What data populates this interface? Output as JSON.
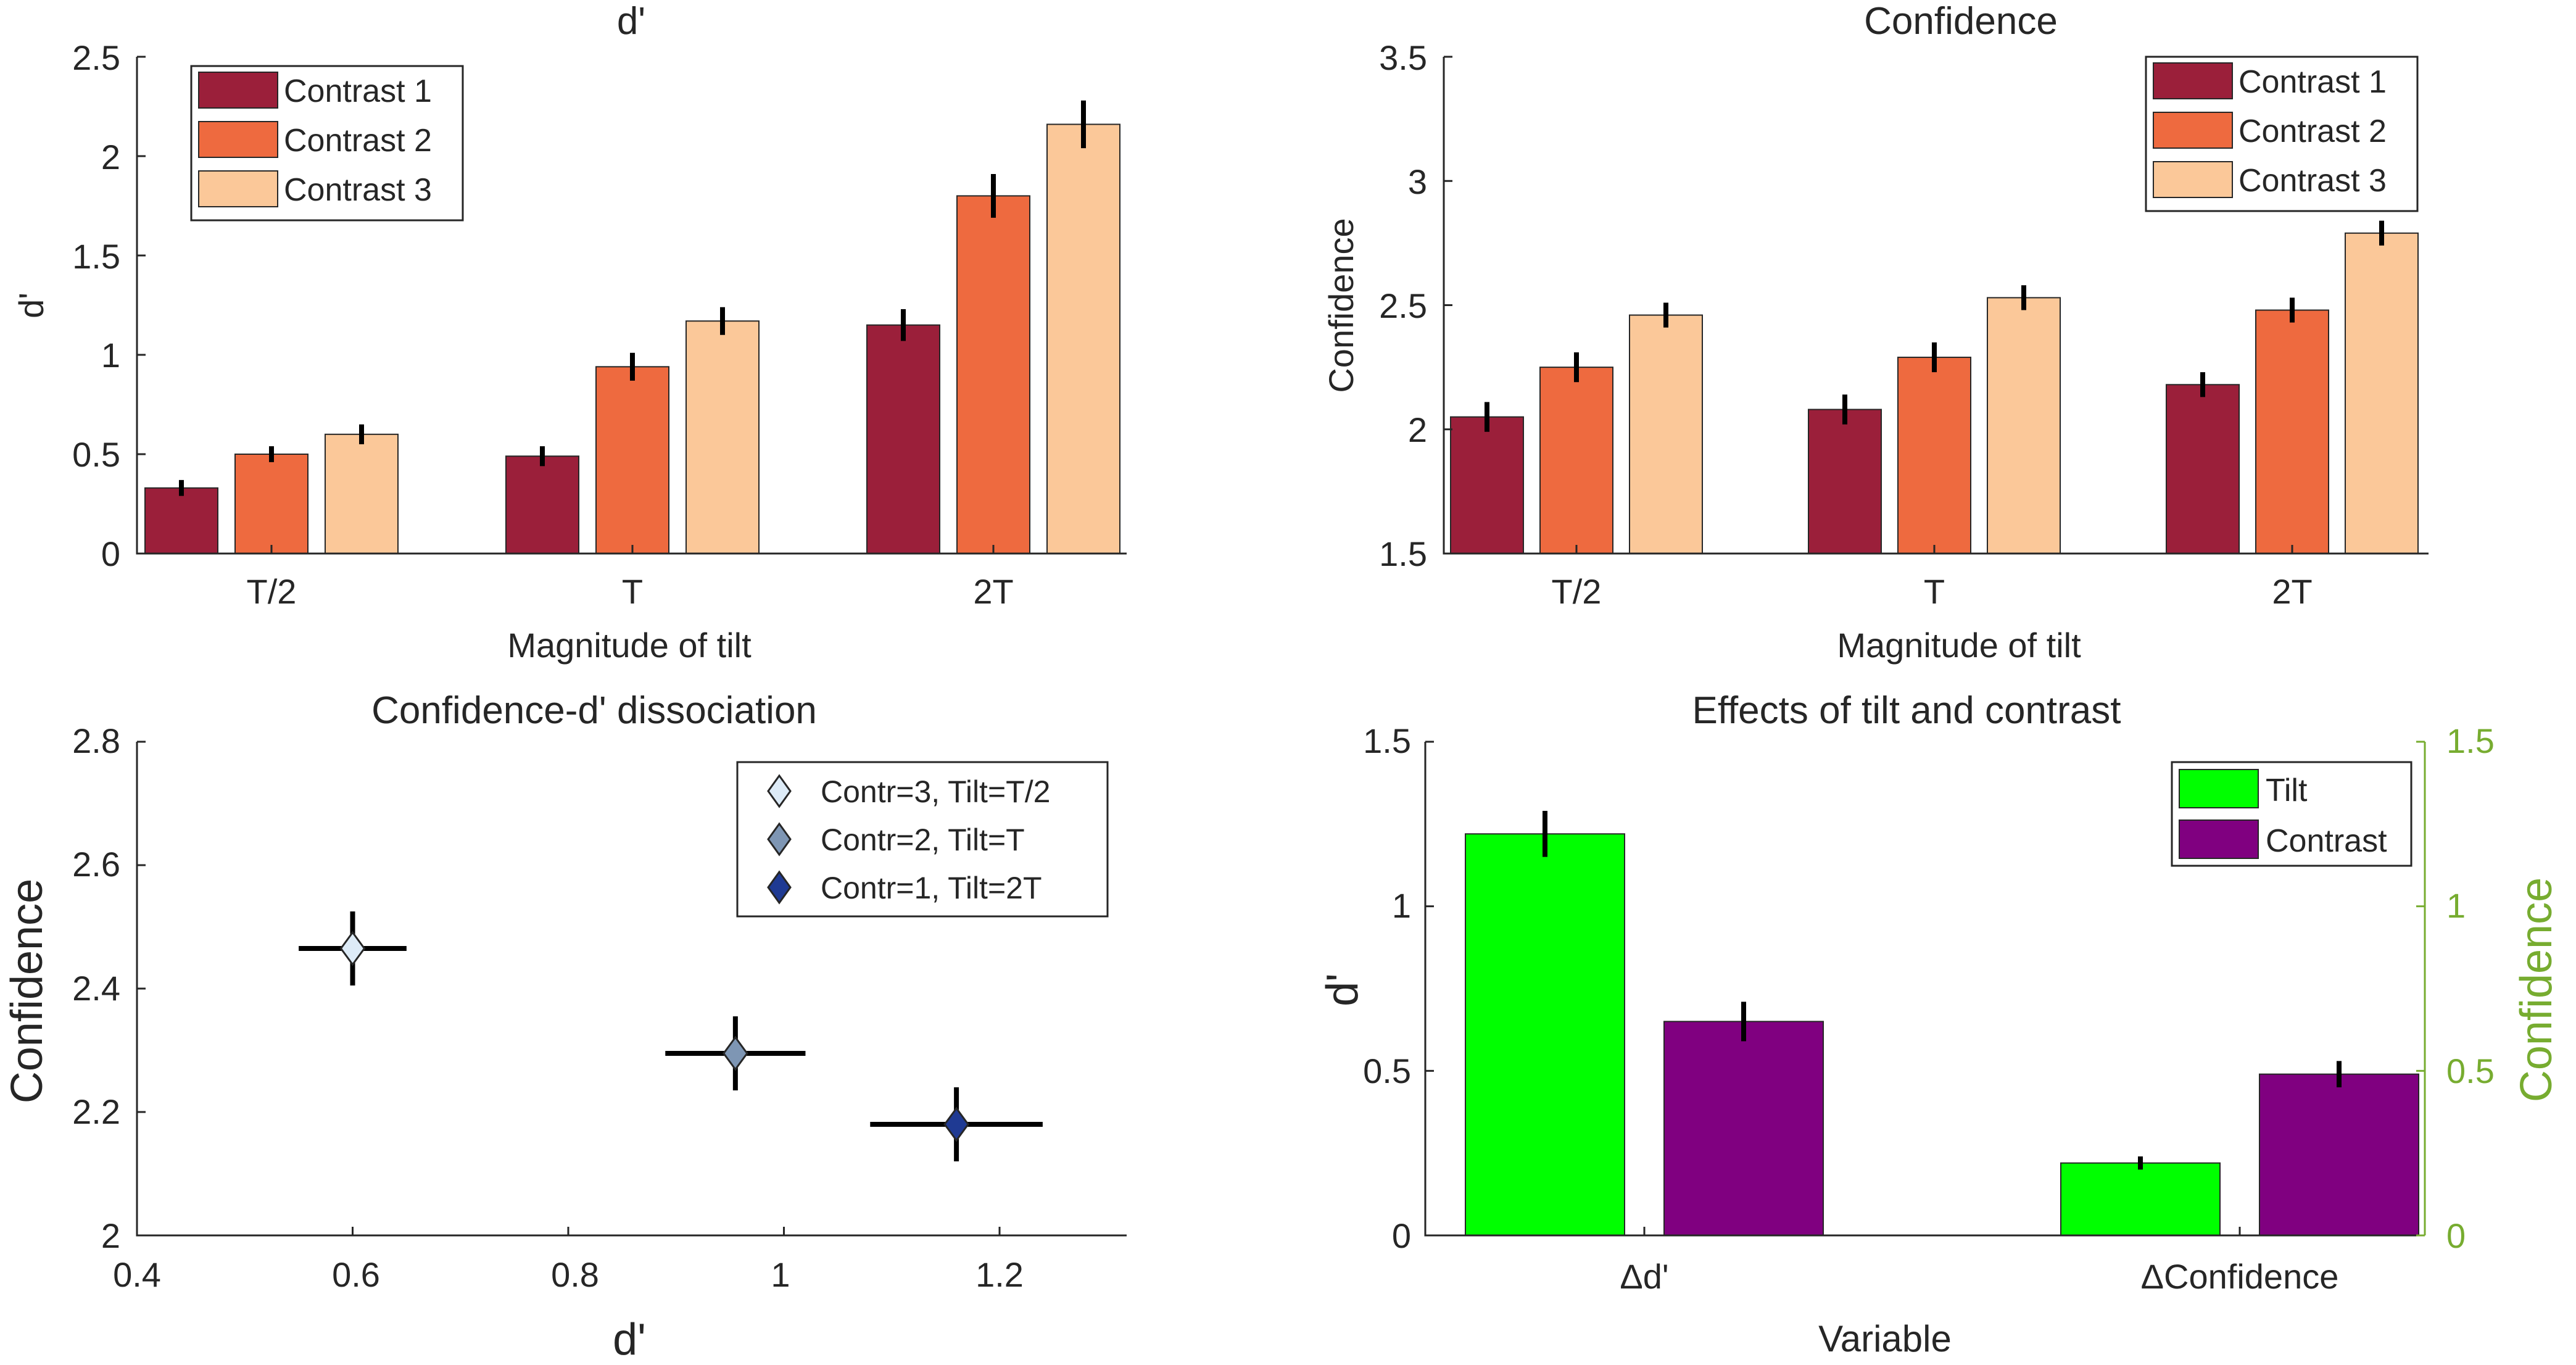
{
  "palette": {
    "contrast1": "#9B1F3A",
    "contrast2": "#EE6A3F",
    "contrast3": "#FBC899",
    "tilt": "#00FF00",
    "contrast_purple": "#800080",
    "right_axis": "#77AC30",
    "diamond1": "#DDEBF7",
    "diamond2": "#7E96B4",
    "diamond3": "#1F3A93"
  },
  "chart_data": [
    {
      "type": "bar",
      "title": "d'",
      "xlabel": "Magnitude of tilt",
      "ylabel": "d'",
      "ylim": [
        0,
        2.5
      ],
      "yticks": [
        "0",
        "0.5",
        "1",
        "1.5",
        "2",
        "2.5"
      ],
      "categories": [
        "T/2",
        "T",
        "2T"
      ],
      "legend_position": "top-left",
      "series": [
        {
          "name": "Contrast 1",
          "values": [
            0.33,
            0.49,
            1.15
          ],
          "errors": [
            0.04,
            0.05,
            0.08
          ]
        },
        {
          "name": "Contrast 2",
          "values": [
            0.5,
            0.94,
            1.8
          ],
          "errors": [
            0.04,
            0.07,
            0.11
          ]
        },
        {
          "name": "Contrast 3",
          "values": [
            0.6,
            1.17,
            2.16
          ],
          "errors": [
            0.05,
            0.07,
            0.12
          ]
        }
      ]
    },
    {
      "type": "bar",
      "title": "Confidence",
      "xlabel": "Magnitude of tilt",
      "ylabel": "Confidence",
      "ylim": [
        1.5,
        3.5
      ],
      "yticks": [
        "1.5",
        "2",
        "2.5",
        "3",
        "3.5"
      ],
      "categories": [
        "T/2",
        "T",
        "2T"
      ],
      "legend_position": "top-right",
      "series": [
        {
          "name": "Contrast 1",
          "values": [
            2.05,
            2.08,
            2.18
          ],
          "errors": [
            0.06,
            0.06,
            0.05
          ]
        },
        {
          "name": "Contrast 2",
          "values": [
            2.25,
            2.29,
            2.48
          ],
          "errors": [
            0.06,
            0.06,
            0.05
          ]
        },
        {
          "name": "Contrast 3",
          "values": [
            2.46,
            2.53,
            2.79
          ],
          "errors": [
            0.05,
            0.05,
            0.05
          ]
        }
      ]
    },
    {
      "type": "scatter",
      "title": "Confidence-d' dissociation",
      "xlabel": "d'",
      "ylabel": "Confidence",
      "xlim": [
        0.4,
        1.3
      ],
      "ylim": [
        2,
        2.8
      ],
      "xticks": [
        "0.4",
        "0.6",
        "0.8",
        "1",
        "1.2"
      ],
      "yticks": [
        "2",
        "2.2",
        "2.4",
        "2.6",
        "2.8"
      ],
      "legend_position": "top-right",
      "series": [
        {
          "name": "Contr=3, Tilt=T/2",
          "x": 0.6,
          "y": 2.465,
          "xerr": 0.05,
          "yerr": 0.06
        },
        {
          "name": "Contr=2, Tilt=T",
          "x": 0.955,
          "y": 2.295,
          "xerr": 0.065,
          "yerr": 0.06
        },
        {
          "name": "Contr=1, Tilt=2T",
          "x": 1.16,
          "y": 2.18,
          "xerr": 0.08,
          "yerr": 0.06
        }
      ]
    },
    {
      "type": "bar",
      "title": "Effects of tilt and contrast",
      "xlabel": "Variable",
      "ylabel": "d'",
      "ylabel_right": "Confidence",
      "ylim": [
        0,
        1.5
      ],
      "yticks": [
        "0",
        "0.5",
        "1",
        "1.5"
      ],
      "yticks_right": [
        "0",
        "0.5",
        "1",
        "1.5"
      ],
      "categories": [
        "Δd'",
        "ΔConfidence"
      ],
      "legend_position": "top-right",
      "series": [
        {
          "name": "Tilt",
          "values": [
            1.22,
            0.22
          ],
          "errors": [
            0.07,
            0.02
          ]
        },
        {
          "name": "Contrast",
          "values": [
            0.65,
            0.49
          ],
          "errors": [
            0.06,
            0.04
          ]
        }
      ]
    }
  ]
}
